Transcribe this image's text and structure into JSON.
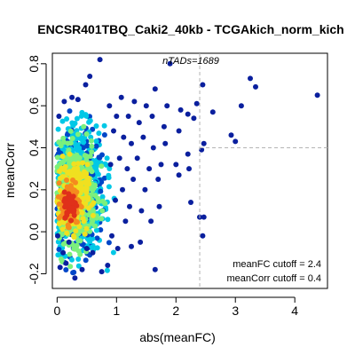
{
  "chart_data": {
    "type": "scatter",
    "title": "ENCSR401TBQ_Caki2_40kb - TCGAkich_norm_kich",
    "xlabel": "abs(meanFC)",
    "ylabel": "meanCorr",
    "xlim": [
      -0.08,
      4.55
    ],
    "ylim": [
      -0.27,
      0.85
    ],
    "x_ticks": [
      0,
      1,
      2,
      3,
      4
    ],
    "y_ticks": [
      -0.2,
      0.0,
      0.2,
      0.4,
      0.6,
      0.8
    ],
    "grid": false,
    "n_tads_label": "nTADs=1689",
    "cutoff_text": {
      "meanFC": "meanFC cutoff = 2.4",
      "meanCorr": "meanCorr cutoff = 0.4"
    },
    "cutoffs": {
      "meanFC": 2.4,
      "meanCorr": 0.4
    },
    "colors": {
      "point_outlier": "#0a1f9e",
      "point_sparse": "#0046c8",
      "density_low": "#00c8e6",
      "density_mid": "#7cf07c",
      "density_high": "#f0e020",
      "density_peak": "#e0301a",
      "cutoff_line": "#b4b4b4"
    },
    "points": [
      [
        4.38,
        0.65
      ],
      [
        3.25,
        0.73
      ],
      [
        3.34,
        0.69
      ],
      [
        3.1,
        0.6
      ],
      [
        2.93,
        0.46
      ],
      [
        3.0,
        0.43
      ],
      [
        2.62,
        0.57
      ],
      [
        2.45,
        0.7
      ],
      [
        2.47,
        0.42
      ],
      [
        2.43,
        0.39
      ],
      [
        2.4,
        0.07
      ],
      [
        2.47,
        0.07
      ],
      [
        2.45,
        -0.02
      ],
      [
        2.35,
        0.61
      ],
      [
        2.3,
        0.54
      ],
      [
        2.2,
        0.56
      ],
      [
        2.2,
        0.37
      ],
      [
        2.22,
        0.3
      ],
      [
        2.25,
        0.14
      ],
      [
        2.08,
        0.58
      ],
      [
        2.05,
        0.48
      ],
      [
        2.0,
        0.32
      ],
      [
        2.05,
        0.27
      ],
      [
        1.9,
        0.8
      ],
      [
        1.85,
        0.6
      ],
      [
        1.8,
        0.5
      ],
      [
        1.82,
        0.42
      ],
      [
        1.75,
        0.32
      ],
      [
        1.7,
        0.25
      ],
      [
        1.72,
        0.12
      ],
      [
        1.65,
        0.68
      ],
      [
        1.6,
        0.55
      ],
      [
        1.62,
        0.4
      ],
      [
        1.55,
        0.3
      ],
      [
        1.58,
        0.05
      ],
      [
        1.5,
        0.6
      ],
      [
        1.45,
        0.45
      ],
      [
        1.48,
        0.2
      ],
      [
        1.42,
        0.1
      ],
      [
        1.4,
        -0.05
      ],
      [
        1.38,
        0.52
      ],
      [
        1.35,
        0.35
      ],
      [
        1.3,
        0.62
      ],
      [
        1.28,
        0.25
      ],
      [
        1.25,
        0.42
      ],
      [
        1.22,
        0.12
      ],
      [
        1.2,
        0.55
      ],
      [
        1.18,
        0.3
      ],
      [
        1.15,
        0.05
      ],
      [
        1.12,
        0.45
      ],
      [
        1.1,
        0.2
      ],
      [
        1.08,
        0.64
      ],
      [
        1.05,
        0.35
      ],
      [
        1.02,
        -0.08
      ],
      [
        1.0,
        0.55
      ],
      [
        0.98,
        0.15
      ],
      [
        0.95,
        0.48
      ],
      [
        0.92,
        -0.02
      ],
      [
        0.9,
        0.32
      ],
      [
        0.88,
        0.6
      ],
      [
        1.65,
        -0.18
      ],
      [
        1.25,
        -0.07
      ],
      [
        0.85,
        -0.16
      ],
      [
        0.75,
        -0.19
      ],
      [
        0.42,
        -0.18
      ],
      [
        0.3,
        -0.22
      ],
      [
        0.15,
        -0.15
      ],
      [
        0.05,
        -0.17
      ],
      [
        0.72,
        0.82
      ],
      [
        0.55,
        0.74
      ],
      [
        0.48,
        0.7
      ],
      [
        0.35,
        0.63
      ],
      [
        0.25,
        0.64
      ],
      [
        0.12,
        0.62
      ],
      [
        0.03,
        0.55
      ],
      [
        0.6,
        -0.1
      ],
      [
        0.5,
        -0.08
      ],
      [
        0.2,
        -0.05
      ],
      [
        0.1,
        -0.1
      ],
      [
        0.01,
        -0.02
      ]
    ]
  }
}
